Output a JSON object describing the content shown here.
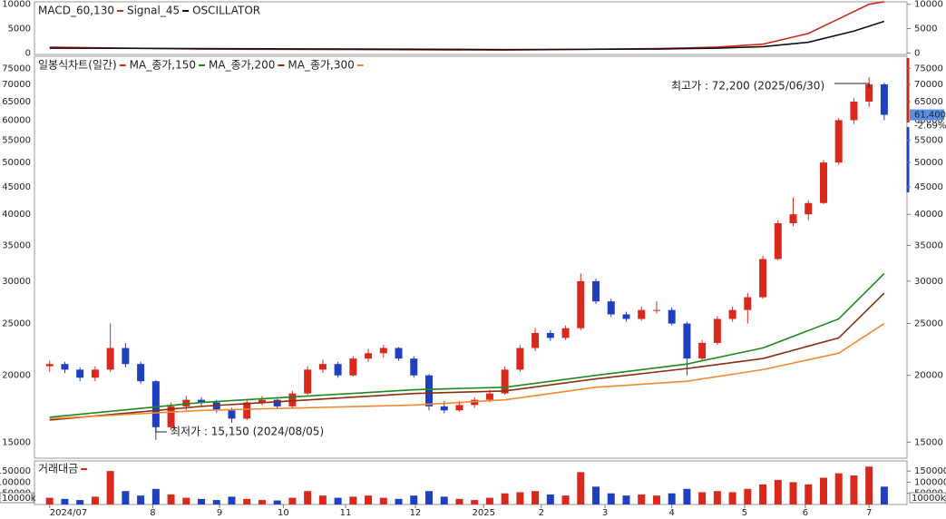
{
  "chart_data": [
    {
      "type": "line",
      "title": "OSCILLATOR",
      "series": [
        {
          "name": "MACD_60,130",
          "color": "#d02818",
          "x": [
            0,
            10,
            20,
            30,
            40,
            44,
            47,
            50,
            52,
            54,
            55
          ],
          "values": [
            1200,
            800,
            700,
            600,
            900,
            1200,
            1800,
            4000,
            7000,
            10000,
            10500
          ]
        },
        {
          "name": "Signal_45",
          "color": "#111111",
          "x": [
            0,
            10,
            20,
            30,
            40,
            44,
            47,
            50,
            53,
            55
          ],
          "values": [
            1000,
            900,
            800,
            700,
            800,
            1000,
            1300,
            2200,
            4500,
            6500
          ]
        }
      ],
      "ylim": [
        -300,
        10500
      ],
      "yticks": [
        10000,
        5000,
        0
      ]
    },
    {
      "type": "candlestick",
      "title": "일봉식차트(일간)",
      "open": [
        20800,
        21000,
        20500,
        19800,
        20500,
        22500,
        21000,
        19500,
        16000,
        17500,
        18000,
        17800,
        17200,
        16600,
        17800,
        18000,
        17500,
        18500,
        20500,
        21000,
        20000,
        21500,
        22000,
        22500,
        21500,
        20000,
        17500,
        17200,
        17600,
        18000,
        18500,
        20500,
        22500,
        24000,
        23500,
        24500,
        30000,
        27500,
        26000,
        25500,
        26500,
        26500,
        25000,
        21500,
        23000,
        25500,
        26500,
        28000,
        33000,
        38500,
        40000,
        42000,
        50000,
        60000,
        65000,
        70000
      ],
      "high": [
        21300,
        21200,
        20700,
        20800,
        25000,
        23000,
        21200,
        19600,
        17800,
        18300,
        18200,
        18000,
        17400,
        18000,
        18300,
        18100,
        18700,
        20800,
        21400,
        21200,
        21700,
        22400,
        22800,
        22600,
        21700,
        20100,
        17900,
        17900,
        18200,
        18800,
        20800,
        22800,
        24500,
        24300,
        24800,
        31000,
        30300,
        27800,
        26300,
        26900,
        27500,
        26800,
        25200,
        23300,
        25800,
        26900,
        28500,
        33500,
        39000,
        43000,
        42500,
        50500,
        60500,
        66000,
        72200,
        70500
      ],
      "low": [
        20300,
        20200,
        19500,
        19500,
        20300,
        20700,
        19300,
        15150,
        15800,
        17200,
        17500,
        17000,
        16300,
        16500,
        17600,
        17300,
        17400,
        18400,
        20200,
        19800,
        19900,
        21200,
        21600,
        21300,
        19800,
        17200,
        17000,
        17100,
        17400,
        17800,
        18400,
        20300,
        22200,
        23200,
        23300,
        24300,
        27200,
        25700,
        25200,
        25300,
        26100,
        24800,
        20000,
        21300,
        22800,
        25200,
        25000,
        27800,
        32800,
        38000,
        39000,
        41800,
        49500,
        59000,
        63500,
        60000
      ],
      "close": [
        21000,
        20500,
        19800,
        20500,
        22500,
        21000,
        19500,
        16000,
        17500,
        18000,
        17800,
        17200,
        16600,
        17800,
        18000,
        17500,
        18500,
        20500,
        21000,
        20000,
        21500,
        22000,
        22500,
        21500,
        20000,
        17500,
        17200,
        17600,
        18000,
        18500,
        20500,
        22500,
        24000,
        23500,
        24500,
        30000,
        27500,
        26000,
        25500,
        26500,
        26500,
        25000,
        21500,
        23000,
        25500,
        26500,
        28000,
        33000,
        38500,
        40000,
        42000,
        50000,
        60000,
        65000,
        70000,
        61400
      ],
      "up_color": "#d9281c",
      "down_color": "#1f3fbf",
      "series": [
        {
          "name": "MA_종가,150",
          "color": "#1e8a1e",
          "x": [
            0,
            10,
            24,
            30,
            36,
            42,
            47,
            52,
            55
          ],
          "values": [
            16700,
            17800,
            18800,
            19000,
            20000,
            21000,
            22500,
            25500,
            31000
          ]
        },
        {
          "name": "MA_종가,200",
          "color": "#8b2e10",
          "x": [
            0,
            10,
            24,
            30,
            36,
            42,
            47,
            52,
            55
          ],
          "values": [
            16500,
            17500,
            18500,
            18700,
            19700,
            20600,
            21500,
            23500,
            28500
          ]
        },
        {
          "name": "MA_종가,300",
          "color": "#f08a30",
          "x": [
            0,
            10,
            24,
            30,
            36,
            42,
            47,
            52,
            55
          ],
          "values": [
            16600,
            17200,
            17600,
            18000,
            19000,
            19500,
            20500,
            22000,
            25000
          ]
        }
      ],
      "log_scale": true,
      "ylim": [
        14000,
        79000
      ],
      "yticks": [
        75000,
        70000,
        65000,
        60000,
        55000,
        50000,
        45000,
        40000,
        35000,
        30000,
        25000,
        20000,
        15000
      ],
      "xlim": [
        -1,
        56.5
      ],
      "xticks": [
        {
          "value": 0,
          "label": "2024/07"
        },
        {
          "value": 6.8,
          "label": "8"
        },
        {
          "value": 11.2,
          "label": "9"
        },
        {
          "value": 15.4,
          "label": "10"
        },
        {
          "value": 19.5,
          "label": "11"
        },
        {
          "value": 24.1,
          "label": "12"
        },
        {
          "value": 28.6,
          "label": "2025"
        },
        {
          "value": 32.4,
          "label": "2"
        },
        {
          "value": 36.6,
          "label": "3"
        },
        {
          "value": 41,
          "label": "4"
        },
        {
          "value": 45.8,
          "label": "5"
        },
        {
          "value": 49.8,
          "label": "6"
        },
        {
          "value": 54,
          "label": "7"
        }
      ],
      "annotations": [
        {
          "text": "최고가 : 72,200 (2025/06/30)",
          "color": "#d9281c"
        },
        {
          "text": "최저가 : 15,150 (2024/08/05)",
          "color": "#1f3fbf"
        }
      ],
      "current_price_label": "61,400",
      "change_label": "-2.69%"
    },
    {
      "type": "bar",
      "title": "거래대금",
      "color": "#d9281c",
      "unit_label": "10000k",
      "values": [
        30000,
        25000,
        20000,
        35000,
        150000,
        60000,
        40000,
        70000,
        45000,
        30000,
        25000,
        20000,
        35000,
        25000,
        20000,
        18000,
        30000,
        60000,
        40000,
        30000,
        35000,
        40000,
        30000,
        25000,
        40000,
        60000,
        35000,
        25000,
        20000,
        30000,
        50000,
        55000,
        60000,
        45000,
        40000,
        145000,
        80000,
        50000,
        40000,
        45000,
        40000,
        50000,
        70000,
        55000,
        60000,
        55000,
        70000,
        90000,
        110000,
        100000,
        90000,
        120000,
        140000,
        130000,
        170000,
        80000
      ],
      "ylim": [
        0,
        175000
      ],
      "yticks": [
        150000,
        100000,
        50000
      ]
    }
  ]
}
